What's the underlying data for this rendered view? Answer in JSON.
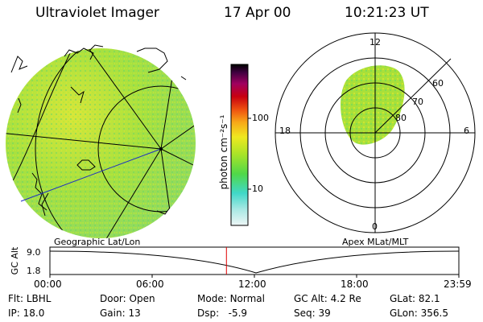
{
  "header": {
    "instrument": "Ultraviolet Imager",
    "date": "17 Apr 00",
    "time": "10:21:23 UT"
  },
  "colorbar": {
    "unit_label": "photon cm⁻²s⁻¹",
    "tick_100": "100",
    "tick_10": "10",
    "colors": [
      "#e8f4f4",
      "#9fe8e0",
      "#40d8c8",
      "#60dc40",
      "#b4e628",
      "#f0e620",
      "#f8a018",
      "#e84010",
      "#c00010",
      "#a00060",
      "#400030",
      "#000000"
    ]
  },
  "polar_plot": {
    "mlt_labels": {
      "top": "12",
      "left": "18",
      "right": "6",
      "bottom": "0"
    },
    "lat_labels": [
      "60",
      "70",
      "80"
    ]
  },
  "map_labels": {
    "left": "Geographic Lat/Lon",
    "right": "Apex MLat/MLT"
  },
  "altitude_plot": {
    "ylabel": "GC Alt",
    "y_ticks": [
      "9.0",
      "1.8"
    ],
    "x_ticks": [
      "00:00",
      "06:00",
      "12:00",
      "18:00",
      "23:59"
    ],
    "current_marker_hour": 10.36,
    "marker_color": "#e00000"
  },
  "status": {
    "row1": [
      {
        "key": "Flt:",
        "value": "LBHL"
      },
      {
        "key": "Door:",
        "value": "Open"
      },
      {
        "key": "Mode:",
        "value": "Normal"
      },
      {
        "key": "GC Alt:",
        "value": "4.2 Re"
      },
      {
        "key": "GLat:",
        "value": "82.1"
      }
    ],
    "row2": [
      {
        "key": "IP:",
        "value": "18.0"
      },
      {
        "key": "Gain:",
        "value": "13"
      },
      {
        "key": "Dsp:",
        "value": "-5.9"
      },
      {
        "key": "Seq:",
        "value": "39"
      },
      {
        "key": "GLon:",
        "value": "356.5"
      }
    ]
  }
}
